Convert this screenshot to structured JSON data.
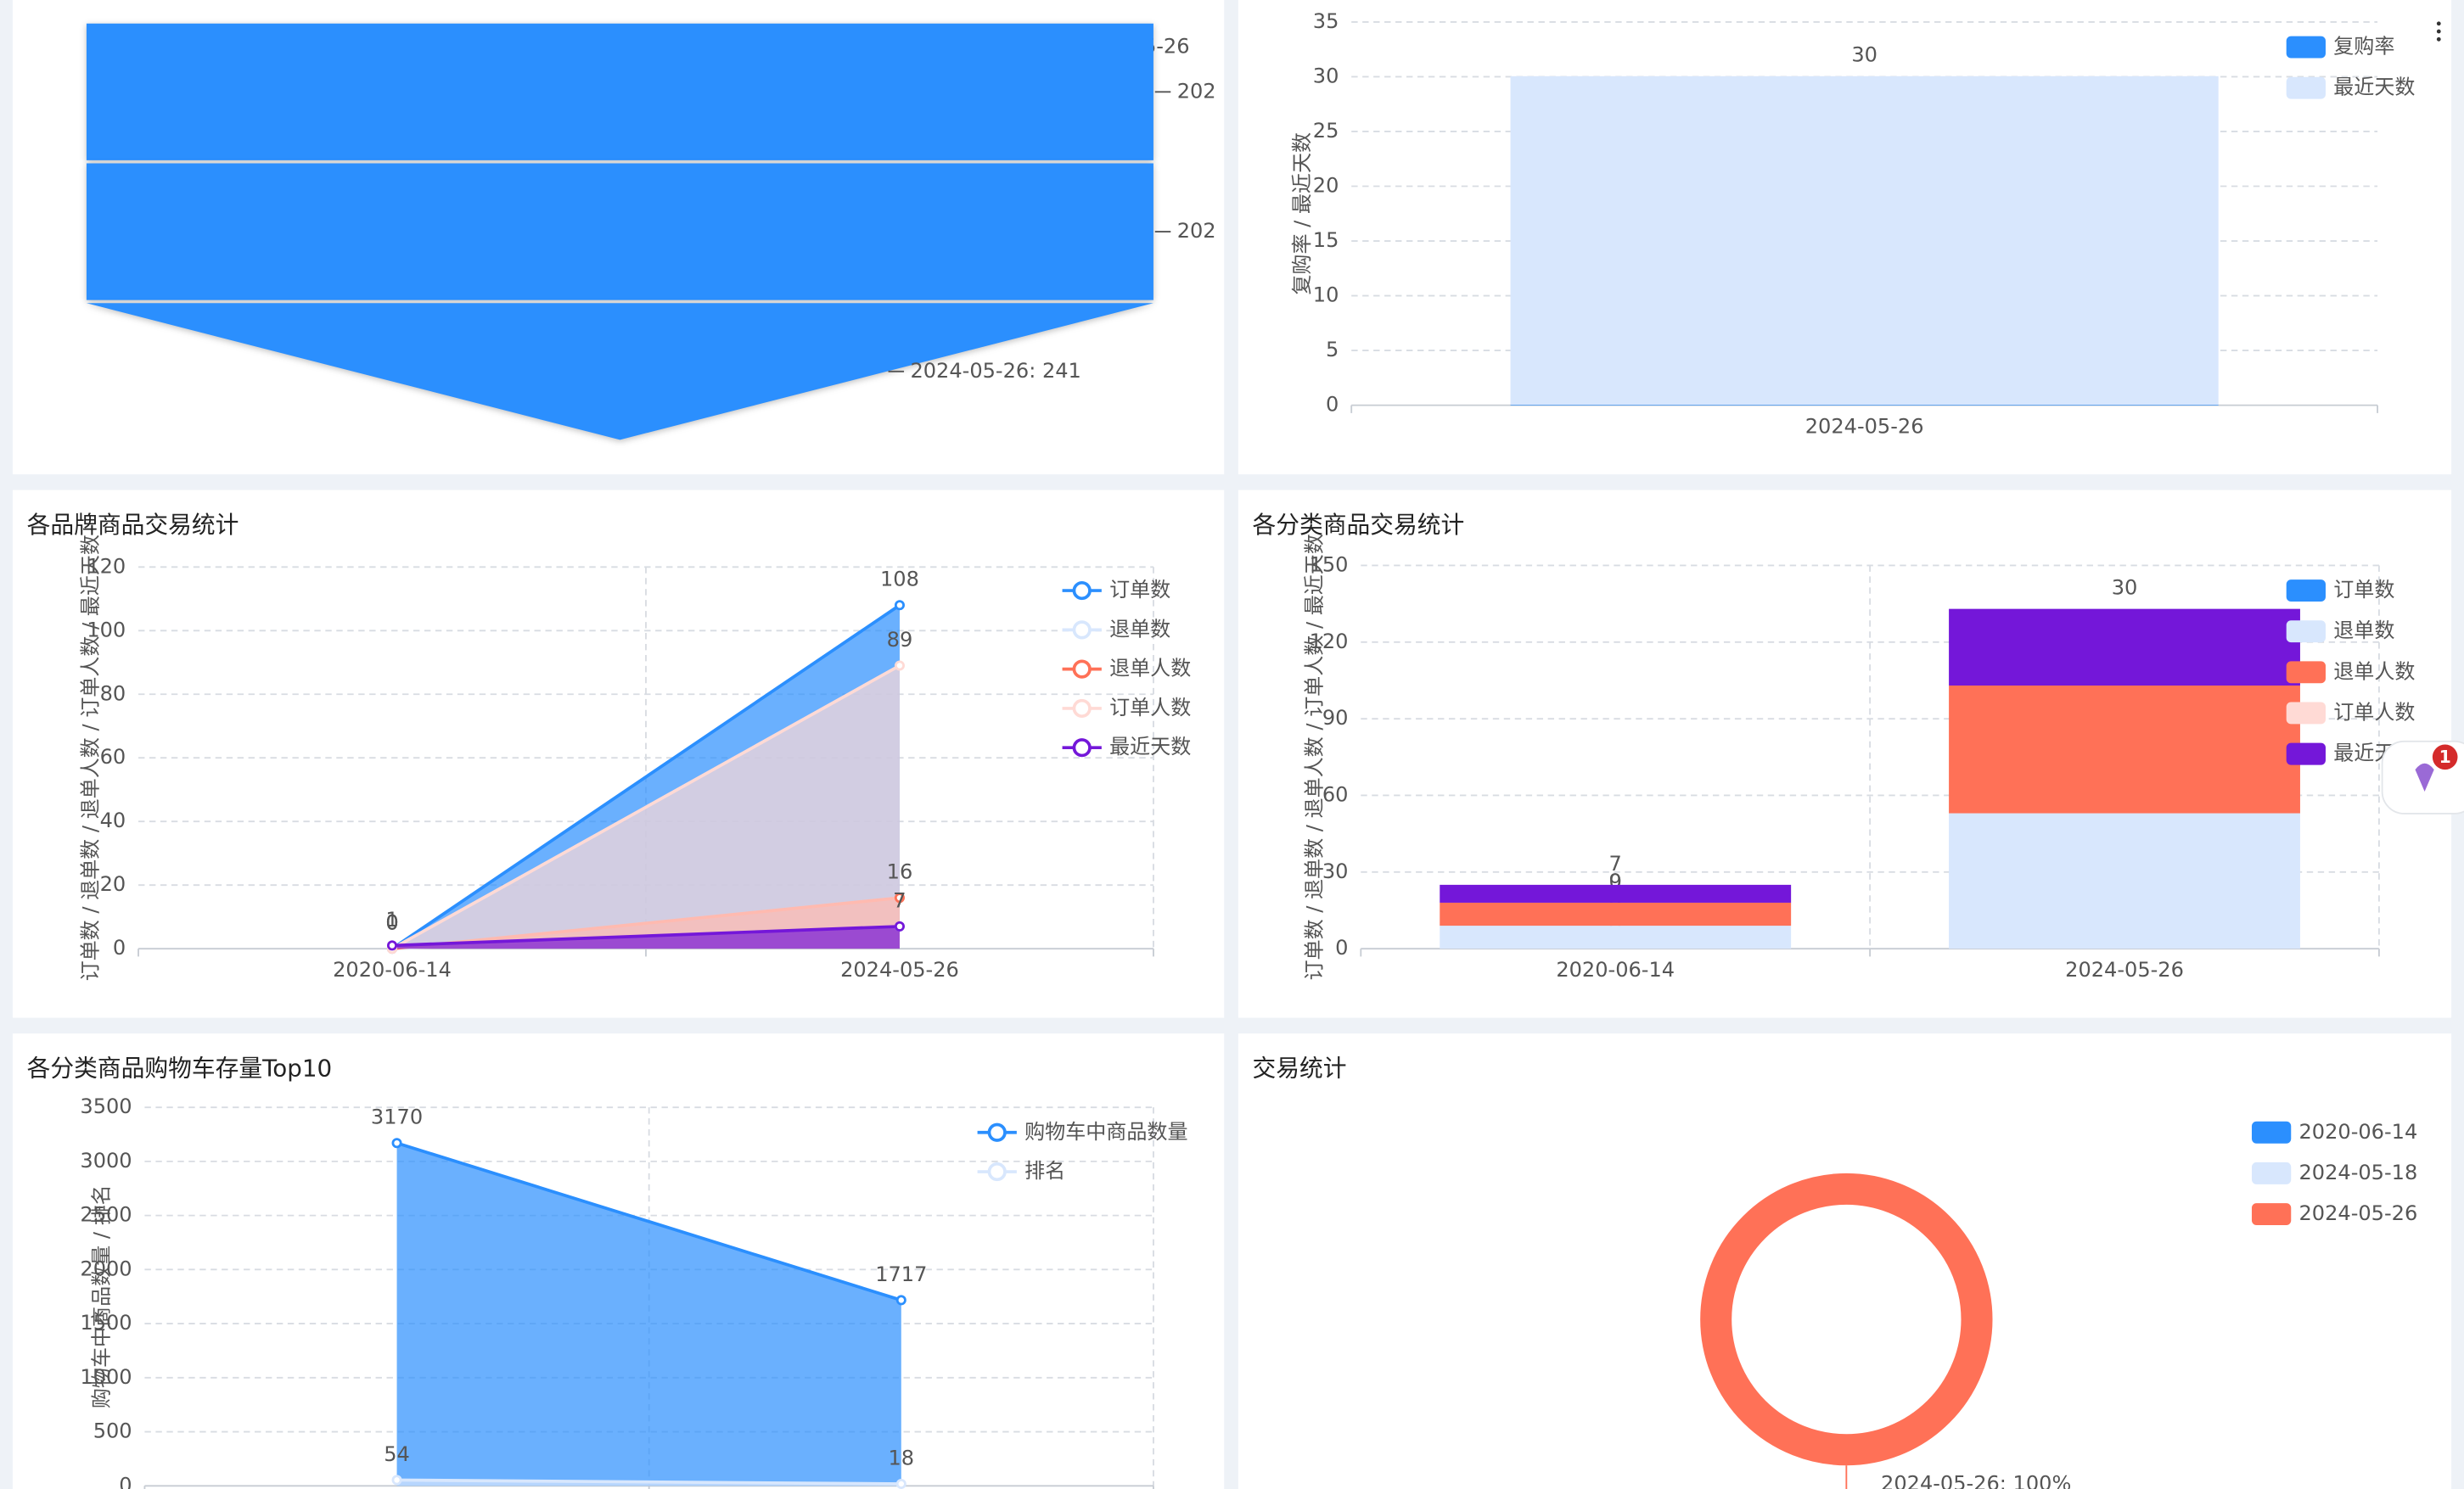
{
  "chart_data": [
    {
      "type": "funnel",
      "annotation": "2024-05-26",
      "labels": [
        "202",
        "202",
        "2024-05-26: 241"
      ],
      "values": [
        241,
        241,
        241
      ],
      "color": "#2b8ffe"
    },
    {
      "type": "bar",
      "stacked": true,
      "y_label": "复购率 / 最近天数",
      "categories": [
        "2024-05-26"
      ],
      "series": [
        {
          "name": "复购率",
          "color": "#2b8ffe",
          "values": [
            0.05
          ]
        },
        {
          "name": "最近天数",
          "color": "#d8e7fd",
          "values": [
            30
          ]
        }
      ],
      "ylim": [
        0,
        35
      ],
      "yticks": [
        0,
        5,
        10,
        15,
        20,
        25,
        30,
        35
      ],
      "grid": true,
      "xgrid": false,
      "legend": "top-right"
    },
    {
      "type": "area",
      "title": "各品牌商品交易统计",
      "y_label": "订单数 / 退单数 / 退单人数 / 订单人数 / 最近天数",
      "categories": [
        "2020-06-14",
        "2024-05-26"
      ],
      "series": [
        {
          "name": "订单数",
          "color": "#2b8ffe",
          "values": [
            0,
            108
          ]
        },
        {
          "name": "退单数",
          "color": "#d8e7fd",
          "values": [
            0,
            7
          ]
        },
        {
          "name": "退单人数",
          "color": "#ff7157",
          "values": [
            0,
            16
          ]
        },
        {
          "name": "订单人数",
          "color": "#ffdad5",
          "values": [
            0,
            89
          ]
        },
        {
          "name": "最近天数",
          "color": "#7417d9",
          "values": [
            1,
            7
          ]
        }
      ],
      "ylim": [
        0,
        120
      ],
      "yticks": [
        0,
        20,
        40,
        60,
        80,
        100,
        120
      ],
      "grid": true,
      "xgrid": true,
      "legend": "top-right"
    },
    {
      "type": "bar",
      "stacked": true,
      "title": "各分类商品交易统计",
      "y_label": "订单数 / 退单数 / 退单人数 / 订单人数 / 最近天数",
      "categories": [
        "2020-06-14",
        "2024-05-26"
      ],
      "series": [
        {
          "name": "订单数",
          "color": "#2b8ffe",
          "values": [
            0,
            0
          ]
        },
        {
          "name": "退单数",
          "color": "#d8e7fd",
          "values": [
            9,
            53
          ]
        },
        {
          "name": "退单人数",
          "color": "#ff7157",
          "values": [
            9,
            50
          ]
        },
        {
          "name": "订单人数",
          "color": "#ffdad5",
          "values": [
            0,
            0
          ]
        },
        {
          "name": "最近天数",
          "color": "#7417d9",
          "values": [
            7,
            30
          ]
        }
      ],
      "ylim": [
        0,
        150
      ],
      "yticks": [
        0,
        30,
        60,
        90,
        120,
        150
      ],
      "grid": true,
      "xgrid": true,
      "legend": "top-right"
    },
    {
      "type": "area",
      "title": "各分类商品购物车存量Top10",
      "y_label": "购物车中商品数量 / 排名",
      "categories": [
        null,
        null
      ],
      "series": [
        {
          "name": "购物车中商品数量",
          "color": "#2b8ffe",
          "values": [
            3170,
            1717
          ]
        },
        {
          "name": "排名",
          "color": "#d8e7fd",
          "values": [
            54,
            18
          ]
        }
      ],
      "ylim": [
        0,
        3500
      ],
      "yticks": [
        0,
        500,
        1000,
        1500,
        2000,
        2500,
        3000,
        3500
      ],
      "grid": true,
      "xgrid": true,
      "legend": "top-right"
    },
    {
      "type": "pie",
      "title": "交易统计",
      "categories": [
        "2020-06-14",
        "2024-05-18",
        "2024-05-26"
      ],
      "values": [
        0,
        0,
        100
      ],
      "value_labels": [
        null,
        null,
        "2024-05-26: 100%"
      ],
      "colors": [
        "#2b8ffe",
        "#d8e7fd",
        "#ff7157"
      ],
      "legend": "top-right"
    }
  ],
  "widget": {
    "badge": "1"
  }
}
